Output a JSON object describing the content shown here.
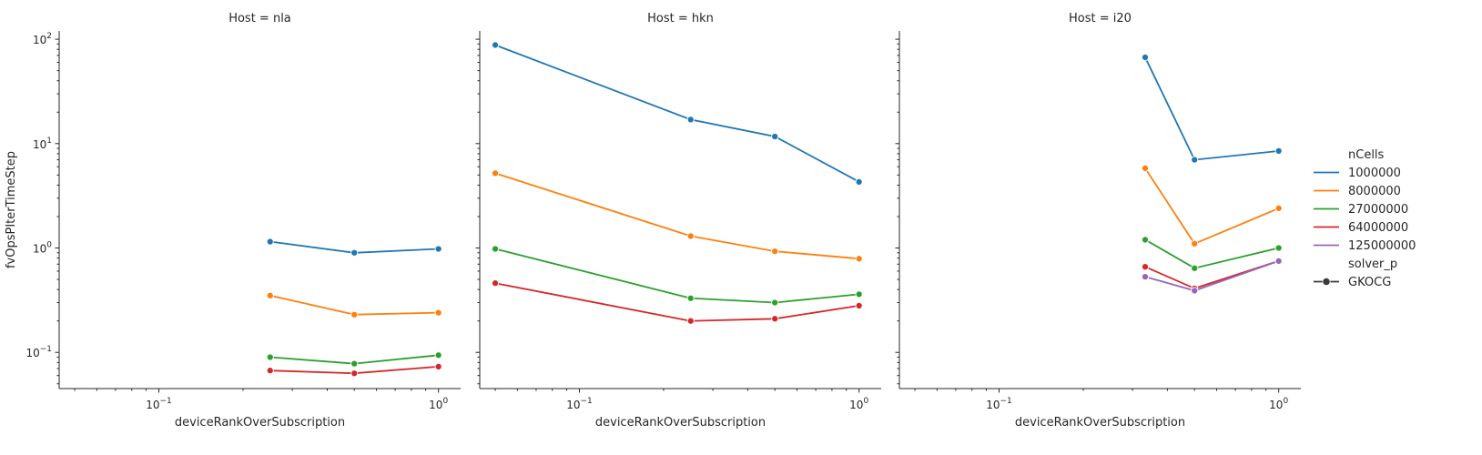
{
  "chart_data": {
    "type": "line",
    "x_scale": "log",
    "y_scale": "log",
    "xlim": [
      0.044,
      1.2
    ],
    "ylim": [
      0.045,
      120
    ],
    "xlabel": "deviceRankOverSubscription",
    "ylabel": "fvOpsPIterTimeStep",
    "x_major_ticks": [
      {
        "value": 0.1,
        "base": "10",
        "exp": "−1"
      },
      {
        "value": 1,
        "base": "10",
        "exp": "0"
      }
    ],
    "y_major_ticks": [
      {
        "value": 0.1,
        "base": "10",
        "exp": "−1"
      },
      {
        "value": 1,
        "base": "10",
        "exp": "0"
      },
      {
        "value": 10,
        "base": "10",
        "exp": "1"
      },
      {
        "value": 100,
        "base": "10",
        "exp": "2"
      }
    ],
    "legend": {
      "placement": "right",
      "hue_title": "nCells",
      "style_title": "solver_p",
      "style_entries": [
        "GKOCG"
      ]
    },
    "series_meta": [
      {
        "name": "1000000",
        "color": "#1f77b4"
      },
      {
        "name": "8000000",
        "color": "#ff7f0e"
      },
      {
        "name": "27000000",
        "color": "#2ca02c"
      },
      {
        "name": "64000000",
        "color": "#d62728"
      },
      {
        "name": "125000000",
        "color": "#9467bd"
      }
    ],
    "panels": [
      {
        "title": "Host = nla",
        "series": [
          {
            "name": "1000000",
            "x": [
              0.25,
              0.5,
              1
            ],
            "y": [
              1.15,
              0.9,
              0.98
            ]
          },
          {
            "name": "8000000",
            "x": [
              0.25,
              0.5,
              1
            ],
            "y": [
              0.35,
              0.23,
              0.24
            ]
          },
          {
            "name": "27000000",
            "x": [
              0.25,
              0.5,
              1
            ],
            "y": [
              0.09,
              0.078,
              0.094
            ]
          },
          {
            "name": "64000000",
            "x": [
              0.25,
              0.5,
              1
            ],
            "y": [
              0.067,
              0.063,
              0.073
            ]
          }
        ]
      },
      {
        "title": "Host = hkn",
        "series": [
          {
            "name": "1000000",
            "x": [
              0.05,
              0.25,
              0.5,
              1
            ],
            "y": [
              88,
              17,
              11.7,
              4.3
            ]
          },
          {
            "name": "8000000",
            "x": [
              0.05,
              0.25,
              0.5,
              1
            ],
            "y": [
              5.2,
              1.3,
              0.93,
              0.79
            ]
          },
          {
            "name": "27000000",
            "x": [
              0.05,
              0.25,
              0.5,
              1
            ],
            "y": [
              0.98,
              0.33,
              0.3,
              0.36
            ]
          },
          {
            "name": "64000000",
            "x": [
              0.05,
              0.25,
              0.5,
              1
            ],
            "y": [
              0.46,
              0.2,
              0.21,
              0.28
            ]
          }
        ]
      },
      {
        "title": "Host = i20",
        "series": [
          {
            "name": "1000000",
            "x": [
              0.333,
              0.5,
              1
            ],
            "y": [
              67,
              7,
              8.5
            ]
          },
          {
            "name": "8000000",
            "x": [
              0.333,
              0.5,
              1
            ],
            "y": [
              5.8,
              1.1,
              2.4
            ]
          },
          {
            "name": "27000000",
            "x": [
              0.333,
              0.5,
              1
            ],
            "y": [
              1.2,
              0.64,
              1.0
            ]
          },
          {
            "name": "64000000",
            "x": [
              0.333,
              0.5,
              1
            ],
            "y": [
              0.66,
              0.41,
              0.75
            ]
          },
          {
            "name": "125000000",
            "x": [
              0.333,
              0.5,
              1
            ],
            "y": [
              0.53,
              0.39,
              0.75
            ]
          }
        ]
      }
    ]
  }
}
